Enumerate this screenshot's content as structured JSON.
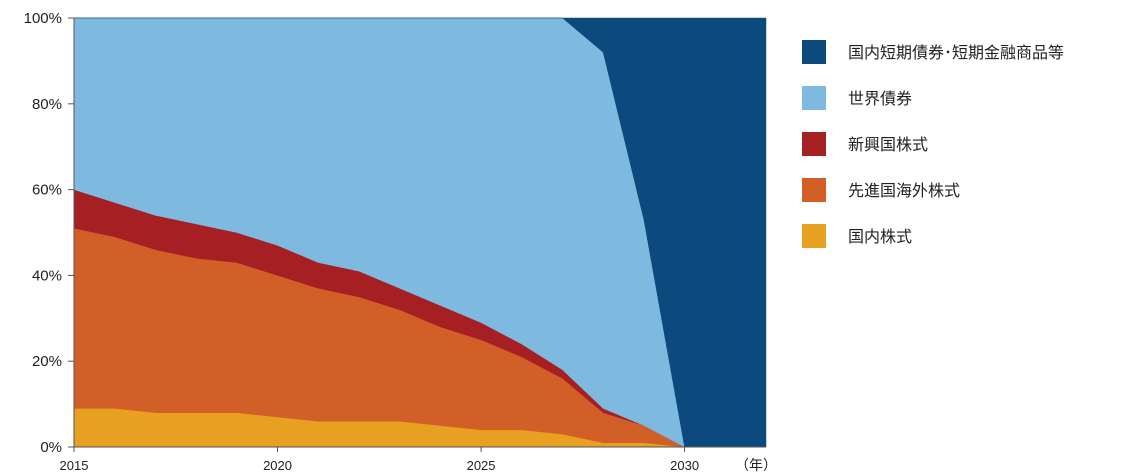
{
  "chart_data": {
    "type": "area",
    "stacked": true,
    "x_unit_label": "（年）",
    "x_ticks": [
      2015,
      2020,
      2025,
      2030
    ],
    "y_ticks": [
      "0%",
      "20%",
      "40%",
      "60%",
      "80%",
      "100%"
    ],
    "ylim": [
      0,
      100
    ],
    "xlim": [
      2015,
      2032
    ],
    "legend_position": "right",
    "x": [
      2015,
      2016,
      2017,
      2018,
      2019,
      2020,
      2021,
      2022,
      2023,
      2024,
      2025,
      2026,
      2027,
      2028,
      2029,
      2030,
      2031,
      2032
    ],
    "series": [
      {
        "name": "国内株式",
        "color": "#e8a020",
        "values": [
          9,
          9,
          8,
          8,
          8,
          7,
          6,
          6,
          6,
          5,
          4,
          4,
          3,
          1,
          1,
          0,
          0,
          0
        ]
      },
      {
        "name": "先進国海外株式",
        "color": "#d15f27",
        "values": [
          42,
          40,
          38,
          36,
          35,
          33,
          31,
          29,
          26,
          23,
          21,
          17,
          13,
          7,
          4,
          0,
          0,
          0
        ]
      },
      {
        "name": "新興国株式",
        "color": "#a51f23",
        "values": [
          9,
          8,
          8,
          8,
          7,
          7,
          6,
          6,
          5,
          5,
          4,
          3,
          2,
          1,
          0,
          0,
          0,
          0
        ]
      },
      {
        "name": "世界債券",
        "color": "#7ebae0",
        "values": [
          40,
          43,
          46,
          48,
          50,
          53,
          57,
          59,
          63,
          67,
          71,
          76,
          82,
          83,
          48,
          0,
          0,
          0
        ]
      },
      {
        "name": "国内短期債券･短期金融商品等",
        "color": "#0c4a7d",
        "values": [
          0,
          0,
          0,
          0,
          0,
          0,
          0,
          0,
          0,
          0,
          0,
          0,
          0,
          8,
          47,
          100,
          100,
          100
        ]
      }
    ],
    "legend_order": [
      "国内短期債券･短期金融商品等",
      "世界債券",
      "新興国株式",
      "先進国海外株式",
      "国内株式"
    ]
  }
}
